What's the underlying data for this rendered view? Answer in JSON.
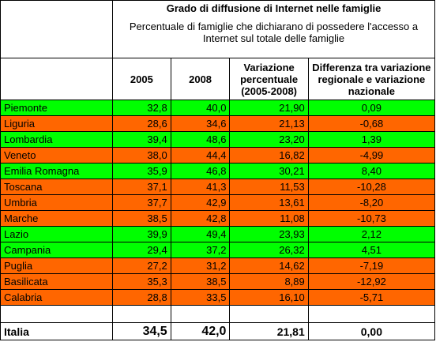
{
  "title": "Grado di diffusione di Internet nelle famiglie",
  "subtitle": "Percentuale di famiglie che dichiarano di possedere l'accesso a Internet sul totale delle famiglie",
  "headers": [
    "2005",
    "2008",
    "Variazione percentuale (2005-2008)",
    "Differenza tra variazione regionale e variazione nazionale"
  ],
  "colors": {
    "above": "#00ff00",
    "below": "#ff6600"
  },
  "rows": [
    {
      "region": "Piemonte",
      "y2005": "32,8",
      "y2008": "40,0",
      "var": "21,90",
      "diff": "0,09",
      "status": "above"
    },
    {
      "region": "Liguria",
      "y2005": "28,6",
      "y2008": "34,6",
      "var": "21,13",
      "diff": "-0,68",
      "status": "below"
    },
    {
      "region": "Lombardia",
      "y2005": "39,4",
      "y2008": "48,6",
      "var": "23,20",
      "diff": "1,39",
      "status": "above"
    },
    {
      "region": "Veneto",
      "y2005": "38,0",
      "y2008": "44,4",
      "var": "16,82",
      "diff": "-4,99",
      "status": "below"
    },
    {
      "region": "Emilia Romagna",
      "y2005": "35,9",
      "y2008": "46,8",
      "var": "30,21",
      "diff": "8,40",
      "status": "above"
    },
    {
      "region": "Toscana",
      "y2005": "37,1",
      "y2008": "41,3",
      "var": "11,53",
      "diff": "-10,28",
      "status": "below"
    },
    {
      "region": "Umbria",
      "y2005": "37,7",
      "y2008": "42,9",
      "var": "13,61",
      "diff": "-8,20",
      "status": "below"
    },
    {
      "region": "Marche",
      "y2005": "38,5",
      "y2008": "42,8",
      "var": "11,08",
      "diff": "-10,73",
      "status": "below"
    },
    {
      "region": "Lazio",
      "y2005": "39,9",
      "y2008": "49,4",
      "var": "23,93",
      "diff": "2,12",
      "status": "above"
    },
    {
      "region": "Campania",
      "y2005": "29,4",
      "y2008": "37,2",
      "var": "26,32",
      "diff": "4,51",
      "status": "above"
    },
    {
      "region": "Puglia",
      "y2005": "27,2",
      "y2008": "31,2",
      "var": "14,62",
      "diff": "-7,19",
      "status": "below"
    },
    {
      "region": "Basilicata",
      "y2005": "35,3",
      "y2008": "38,5",
      "var": "8,89",
      "diff": "-12,92",
      "status": "below"
    },
    {
      "region": "Calabria",
      "y2005": "28,8",
      "y2008": "33,5",
      "var": "16,10",
      "diff": "-5,71",
      "status": "below"
    }
  ],
  "total": {
    "region": "Italia",
    "y2005": "34,5",
    "y2008": "42,0",
    "var": "21,81",
    "diff": "0,00"
  }
}
